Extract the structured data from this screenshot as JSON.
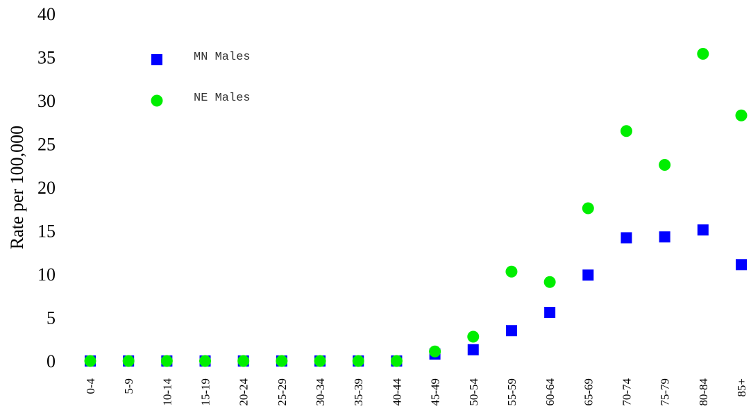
{
  "chart_data": {
    "type": "scatter",
    "title": "",
    "xlabel": "",
    "ylabel": "Rate per 100,000",
    "ylim": [
      0,
      40
    ],
    "yticks": [
      "0",
      "5",
      "10",
      "15",
      "20",
      "25",
      "30",
      "35",
      "40"
    ],
    "categories": [
      "0-4",
      "5-9",
      "10-14",
      "15-19",
      "20-24",
      "25-29",
      "30-34",
      "35-39",
      "40-44",
      "45-49",
      "50-54",
      "55-59",
      "60-64",
      "65-69",
      "70-74",
      "75-79",
      "80-84",
      "85+"
    ],
    "grid": false,
    "legend_position": "top-left",
    "series": [
      {
        "name": "MN Males",
        "marker": "square",
        "color": "#0000ff",
        "values": [
          0,
          0,
          0,
          0,
          0,
          0,
          0,
          0,
          0,
          0.8,
          1.3,
          3.5,
          5.6,
          9.9,
          14.2,
          14.3,
          15.1,
          11.1
        ]
      },
      {
        "name": "NE Males",
        "marker": "circle",
        "color": "#00ee00",
        "values": [
          0,
          0,
          0,
          0,
          0,
          0,
          0,
          0,
          0,
          1.1,
          2.8,
          10.3,
          9.1,
          17.6,
          26.5,
          22.6,
          35.4,
          28.3
        ]
      }
    ]
  }
}
